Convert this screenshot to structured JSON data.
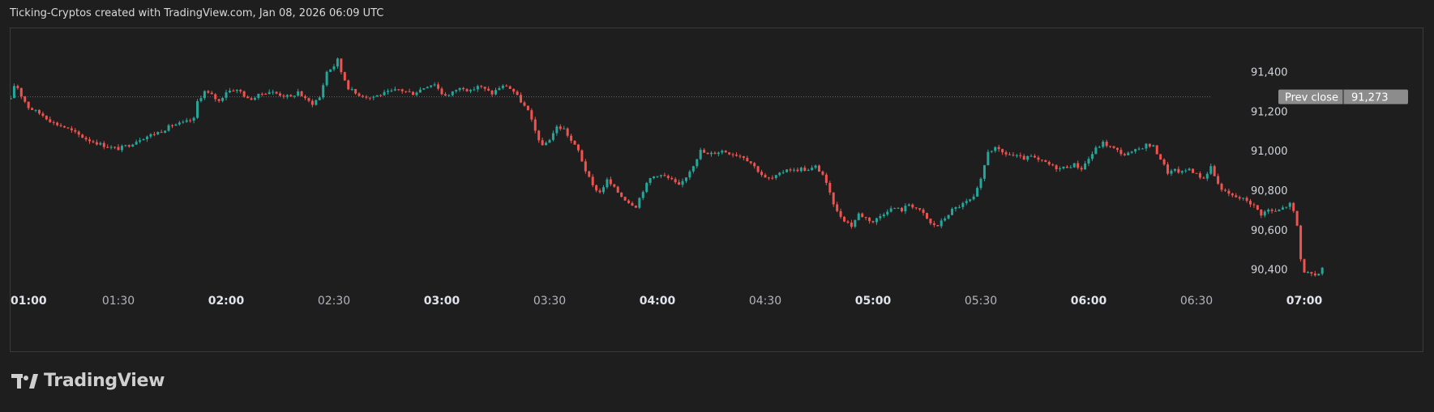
{
  "header": {
    "caption": "Ticking-Cryptos created with TradingView.com, Jan 08, 2026 06:09 UTC"
  },
  "logo": {
    "text": "TradingView",
    "icon": "tradingview-logo-icon"
  },
  "colors": {
    "background": "#1e1e1e",
    "up": "#26a69a",
    "down": "#ef5350",
    "prev_close_tag": "#8c8c8c",
    "text": "#d1d4dc"
  },
  "chart_data": {
    "type": "candlestick",
    "ylim": [
      90300,
      91620
    ],
    "yticks": [
      90400,
      90600,
      90800,
      91000,
      91200,
      91400
    ],
    "ytick_labels": [
      "90,400",
      "90,600",
      "90,800",
      "91,000",
      "91,200",
      "91,400"
    ],
    "xticks": [
      {
        "label": "01:00",
        "minute": 0,
        "bold": true
      },
      {
        "label": "01:30",
        "minute": 30,
        "bold": false
      },
      {
        "label": "02:00",
        "minute": 60,
        "bold": true
      },
      {
        "label": "02:30",
        "minute": 90,
        "bold": false
      },
      {
        "label": "03:00",
        "minute": 120,
        "bold": true
      },
      {
        "label": "03:30",
        "minute": 150,
        "bold": false
      },
      {
        "label": "04:00",
        "minute": 180,
        "bold": true
      },
      {
        "label": "04:30",
        "minute": 210,
        "bold": false
      },
      {
        "label": "05:00",
        "minute": 240,
        "bold": true
      },
      {
        "label": "05:30",
        "minute": 270,
        "bold": false
      },
      {
        "label": "06:00",
        "minute": 300,
        "bold": true
      },
      {
        "label": "06:30",
        "minute": 330,
        "bold": false
      },
      {
        "label": "07:00",
        "minute": 360,
        "bold": true
      }
    ],
    "x_range_minutes": [
      0,
      384
    ],
    "prev_close": {
      "label": "Prev close",
      "value": 91273,
      "value_label": "91,273"
    },
    "path": [
      [
        0,
        91260
      ],
      [
        1,
        91330
      ],
      [
        2,
        91320
      ],
      [
        3,
        91280
      ],
      [
        5,
        91220
      ],
      [
        7,
        91200
      ],
      [
        9,
        91180
      ],
      [
        12,
        91140
      ],
      [
        15,
        91120
      ],
      [
        18,
        91090
      ],
      [
        21,
        91060
      ],
      [
        24,
        91040
      ],
      [
        27,
        91020
      ],
      [
        30,
        91010
      ],
      [
        33,
        91030
      ],
      [
        36,
        91060
      ],
      [
        39,
        91080
      ],
      [
        42,
        91100
      ],
      [
        45,
        91130
      ],
      [
        48,
        91140
      ],
      [
        51,
        91160
      ],
      [
        52,
        91250
      ],
      [
        54,
        91300
      ],
      [
        56,
        91280
      ],
      [
        58,
        91250
      ],
      [
        60,
        91300
      ],
      [
        62,
        91310
      ],
      [
        64,
        91300
      ],
      [
        66,
        91260
      ],
      [
        68,
        91270
      ],
      [
        70,
        91290
      ],
      [
        72,
        91300
      ],
      [
        74,
        91290
      ],
      [
        76,
        91280
      ],
      [
        78,
        91270
      ],
      [
        80,
        91300
      ],
      [
        82,
        91260
      ],
      [
        84,
        91240
      ],
      [
        86,
        91270
      ],
      [
        88,
        91400
      ],
      [
        90,
        91430
      ],
      [
        91,
        91460
      ],
      [
        92,
        91400
      ],
      [
        94,
        91320
      ],
      [
        96,
        91290
      ],
      [
        98,
        91280
      ],
      [
        100,
        91270
      ],
      [
        102,
        91280
      ],
      [
        104,
        91290
      ],
      [
        106,
        91300
      ],
      [
        108,
        91310
      ],
      [
        110,
        91300
      ],
      [
        112,
        91290
      ],
      [
        114,
        91310
      ],
      [
        116,
        91330
      ],
      [
        118,
        91340
      ],
      [
        120,
        91290
      ],
      [
        122,
        91280
      ],
      [
        124,
        91310
      ],
      [
        126,
        91320
      ],
      [
        128,
        91300
      ],
      [
        130,
        91330
      ],
      [
        132,
        91310
      ],
      [
        134,
        91290
      ],
      [
        136,
        91320
      ],
      [
        138,
        91330
      ],
      [
        140,
        91300
      ],
      [
        142,
        91250
      ],
      [
        144,
        91200
      ],
      [
        146,
        91100
      ],
      [
        148,
        91020
      ],
      [
        150,
        91060
      ],
      [
        152,
        91120
      ],
      [
        154,
        91110
      ],
      [
        156,
        91050
      ],
      [
        158,
        91000
      ],
      [
        160,
        90900
      ],
      [
        162,
        90820
      ],
      [
        164,
        90790
      ],
      [
        166,
        90850
      ],
      [
        168,
        90810
      ],
      [
        170,
        90770
      ],
      [
        172,
        90740
      ],
      [
        174,
        90720
      ],
      [
        176,
        90800
      ],
      [
        178,
        90860
      ],
      [
        180,
        90880
      ],
      [
        182,
        90870
      ],
      [
        184,
        90850
      ],
      [
        186,
        90820
      ],
      [
        188,
        90870
      ],
      [
        190,
        90930
      ],
      [
        192,
        91000
      ],
      [
        194,
        90980
      ],
      [
        196,
        90990
      ],
      [
        198,
        91000
      ],
      [
        200,
        90990
      ],
      [
        202,
        90980
      ],
      [
        204,
        90970
      ],
      [
        206,
        90940
      ],
      [
        208,
        90900
      ],
      [
        210,
        90860
      ],
      [
        212,
        90860
      ],
      [
        214,
        90880
      ],
      [
        216,
        90910
      ],
      [
        218,
        90900
      ],
      [
        220,
        90910
      ],
      [
        222,
        90900
      ],
      [
        224,
        90920
      ],
      [
        226,
        90880
      ],
      [
        228,
        90780
      ],
      [
        230,
        90690
      ],
      [
        232,
        90650
      ],
      [
        234,
        90620
      ],
      [
        236,
        90680
      ],
      [
        238,
        90660
      ],
      [
        240,
        90640
      ],
      [
        242,
        90670
      ],
      [
        244,
        90700
      ],
      [
        246,
        90710
      ],
      [
        248,
        90700
      ],
      [
        250,
        90730
      ],
      [
        252,
        90710
      ],
      [
        254,
        90680
      ],
      [
        256,
        90630
      ],
      [
        258,
        90620
      ],
      [
        260,
        90660
      ],
      [
        262,
        90700
      ],
      [
        264,
        90720
      ],
      [
        266,
        90740
      ],
      [
        268,
        90760
      ],
      [
        270,
        90850
      ],
      [
        272,
        91000
      ],
      [
        274,
        91010
      ],
      [
        276,
        90990
      ],
      [
        278,
        90980
      ],
      [
        280,
        90970
      ],
      [
        282,
        90960
      ],
      [
        284,
        90970
      ],
      [
        286,
        90950
      ],
      [
        288,
        90940
      ],
      [
        290,
        90920
      ],
      [
        292,
        90910
      ],
      [
        294,
        90920
      ],
      [
        296,
        90930
      ],
      [
        298,
        90910
      ],
      [
        300,
        90960
      ],
      [
        302,
        91010
      ],
      [
        304,
        91040
      ],
      [
        306,
        91020
      ],
      [
        308,
        91000
      ],
      [
        310,
        90980
      ],
      [
        312,
        90990
      ],
      [
        314,
        91010
      ],
      [
        316,
        91030
      ],
      [
        318,
        91020
      ],
      [
        320,
        90960
      ],
      [
        322,
        90890
      ],
      [
        324,
        90900
      ],
      [
        326,
        90890
      ],
      [
        328,
        90910
      ],
      [
        330,
        90880
      ],
      [
        332,
        90860
      ],
      [
        334,
        90920
      ],
      [
        336,
        90830
      ],
      [
        338,
        90790
      ],
      [
        340,
        90770
      ],
      [
        342,
        90760
      ],
      [
        344,
        90750
      ],
      [
        346,
        90720
      ],
      [
        348,
        90680
      ],
      [
        350,
        90700
      ],
      [
        352,
        90690
      ],
      [
        354,
        90710
      ],
      [
        356,
        90730
      ],
      [
        357,
        90690
      ],
      [
        358,
        90620
      ],
      [
        359,
        90450
      ],
      [
        360,
        90390
      ],
      [
        362,
        90370
      ],
      [
        363,
        90360
      ],
      [
        364,
        90380
      ],
      [
        365,
        90410
      ]
    ]
  }
}
